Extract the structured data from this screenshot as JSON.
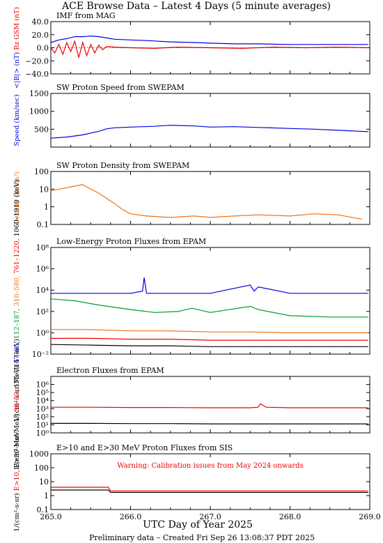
{
  "title": "ACE Browse Data – Latest 4 Days (5 minute averages)",
  "footer": "Preliminary data – Created Fri Sep 26 13:08:37 PDT 2025",
  "colors": {
    "black": "#000000",
    "blue": "#0000dd",
    "red": "#ee0000",
    "orange": "#f07010",
    "green": "#009933"
  },
  "chart_data": [
    {
      "type": "line",
      "title": "IMF from MAG",
      "ylabel_parts": [
        {
          "text": "<|B|> (nT)",
          "color": "#0000dd"
        },
        {
          "text": "Bz GSM (nT)",
          "color": "#ee0000"
        }
      ],
      "ylim": [
        -40,
        40
      ],
      "yscale": "linear",
      "yticks": [
        -40,
        -20,
        0,
        20,
        40
      ],
      "ytick_labels": [
        "−40.0",
        "−20.0",
        "0.0",
        "20.0",
        "40.0"
      ],
      "xlim": [
        265.0,
        269.0
      ],
      "series": [
        {
          "color": "#0000dd",
          "x": [
            265.0,
            265.1,
            265.2,
            265.3,
            265.4,
            265.5,
            265.6,
            265.7,
            265.8,
            266.0,
            266.2,
            266.5,
            266.8,
            267.0,
            267.3,
            267.6,
            268.0,
            268.4,
            268.8,
            268.98
          ],
          "y": [
            8,
            12,
            14,
            17,
            17,
            18,
            17,
            15,
            13,
            12,
            11,
            9,
            8,
            7,
            6,
            6,
            5,
            5,
            5,
            5
          ]
        },
        {
          "color": "#ee0000",
          "x": [
            265.0,
            265.05,
            265.1,
            265.15,
            265.2,
            265.25,
            265.3,
            265.35,
            265.4,
            265.45,
            265.5,
            265.55,
            265.6,
            265.65,
            265.7,
            265.8,
            266.0,
            266.3,
            266.6,
            267.0,
            267.4,
            267.8,
            268.2,
            268.6,
            268.98
          ],
          "y": [
            0,
            -8,
            5,
            -10,
            8,
            -6,
            10,
            -15,
            8,
            -12,
            5,
            -8,
            4,
            -3,
            2,
            1,
            0,
            -1,
            1,
            0,
            -1,
            1,
            0,
            1,
            0
          ]
        }
      ]
    },
    {
      "type": "line",
      "title": "SW Proton Speed from SWEPAM",
      "ylabel_parts": [
        {
          "text": "Speed (km/sec)",
          "color": "#0000dd"
        }
      ],
      "ylim": [
        0,
        1500
      ],
      "yscale": "linear",
      "yticks": [
        500,
        1000,
        1500
      ],
      "ytick_labels": [
        "500",
        "1000",
        "1500"
      ],
      "xlim": [
        265.0,
        269.0
      ],
      "series": [
        {
          "color": "#0000dd",
          "x": [
            265.0,
            265.2,
            265.4,
            265.6,
            265.7,
            265.8,
            266.0,
            266.3,
            266.5,
            266.8,
            267.0,
            267.3,
            267.6,
            268.0,
            268.3,
            268.6,
            268.98
          ],
          "y": [
            250,
            280,
            340,
            440,
            510,
            540,
            560,
            580,
            610,
            590,
            560,
            570,
            550,
            520,
            500,
            470,
            430
          ]
        }
      ]
    },
    {
      "type": "line",
      "title": "SW Proton Density from SWEPAM",
      "ylabel_parts": [
        {
          "text": "Density (#/cm³)",
          "color": "#f07010"
        }
      ],
      "ylim": [
        0.1,
        100
      ],
      "yscale": "log",
      "yticks": [
        0.1,
        1,
        10,
        100
      ],
      "ytick_labels": [
        "0.1",
        "1",
        "10",
        "100"
      ],
      "xlim": [
        265.0,
        269.0
      ],
      "series": [
        {
          "color": "#f07010",
          "x": [
            265.0,
            265.1,
            265.2,
            265.3,
            265.4,
            265.5,
            265.6,
            265.7,
            265.8,
            265.9,
            266.0,
            266.2,
            266.5,
            266.8,
            267.0,
            267.3,
            267.6,
            268.0,
            268.3,
            268.6,
            268.9
          ],
          "y": [
            8,
            10,
            12,
            15,
            18,
            10,
            6,
            3,
            1.5,
            0.7,
            0.4,
            0.3,
            0.25,
            0.3,
            0.25,
            0.3,
            0.35,
            0.3,
            0.4,
            0.35,
            0.2
          ]
        }
      ]
    },
    {
      "type": "line",
      "title": "Low-Energy Proton Fluxes from EPAM",
      "ylabel_parts": [
        {
          "text": "1/(cm²-s-sr-MeV)",
          "color": "#000000"
        },
        {
          "text": "47–65,",
          "color": "#0000dd"
        },
        {
          "text": "112–187,",
          "color": "#009933"
        },
        {
          "text": "310–580,",
          "color": "#f07010"
        },
        {
          "text": "761–1220,",
          "color": "#ee0000"
        },
        {
          "text": "1060–1910 (keV)",
          "color": "#000000"
        }
      ],
      "ylim": [
        0.01,
        100000000
      ],
      "yscale": "log",
      "yticks": [
        0.01,
        1,
        100,
        10000,
        1000000,
        100000000
      ],
      "ytick_labels": [
        "10⁻²",
        "10⁰",
        "10²",
        "10⁴",
        "10⁶",
        "10⁸"
      ],
      "xlim": [
        265.0,
        269.0
      ],
      "series": [
        {
          "color": "#0000dd",
          "x": [
            265.0,
            266.0,
            266.15,
            266.17,
            266.2,
            267.0,
            267.5,
            267.55,
            267.6,
            268.0,
            268.98
          ],
          "y": [
            5000,
            5000,
            8000,
            150000,
            5000,
            5000,
            30000,
            8000,
            20000,
            5000,
            5000
          ]
        },
        {
          "color": "#009933",
          "x": [
            265.0,
            265.3,
            265.6,
            266.0,
            266.3,
            266.6,
            266.77,
            267.0,
            267.5,
            267.6,
            268.0,
            268.5,
            268.98
          ],
          "y": [
            1500,
            1000,
            400,
            150,
            80,
            100,
            200,
            80,
            300,
            150,
            40,
            30,
            30
          ]
        },
        {
          "color": "#f07010",
          "x": [
            265.0,
            265.5,
            266.0,
            266.5,
            267.0,
            267.5,
            268.0,
            268.5,
            268.98
          ],
          "y": [
            2,
            2,
            1.5,
            1.5,
            1.2,
            1.2,
            1,
            1,
            1
          ]
        },
        {
          "color": "#ee0000",
          "x": [
            265.0,
            265.5,
            266.0,
            266.5,
            267.0,
            267.5,
            268.0,
            268.5,
            268.98
          ],
          "y": [
            0.3,
            0.3,
            0.25,
            0.25,
            0.2,
            0.2,
            0.2,
            0.2,
            0.2
          ]
        },
        {
          "color": "#000000",
          "x": [
            265.0,
            265.5,
            266.0,
            266.5,
            267.0,
            267.5,
            268.0,
            268.5,
            268.98
          ],
          "y": [
            0.08,
            0.07,
            0.06,
            0.06,
            0.05,
            0.05,
            0.05,
            0.05,
            0.05
          ]
        }
      ]
    },
    {
      "type": "line",
      "title": "Electron Fluxes from EPAM",
      "ylabel_parts": [
        {
          "text": "1/(cm²-s-sr-MeV)",
          "color": "#000000"
        },
        {
          "text": "38–53,",
          "color": "#ee0000"
        },
        {
          "text": "175–315 (keV)",
          "color": "#000000"
        }
      ],
      "ylim": [
        1,
        10000000
      ],
      "yscale": "log",
      "yticks": [
        1,
        10,
        100,
        1000,
        10000,
        100000,
        1000000
      ],
      "ytick_labels": [
        "10⁰",
        "10¹",
        "10²",
        "10³",
        "10⁴",
        "10⁵",
        "10⁶"
      ],
      "xlim": [
        265.0,
        269.0
      ],
      "series": [
        {
          "color": "#ee0000",
          "x": [
            265.0,
            265.5,
            266.0,
            266.5,
            267.0,
            267.5,
            267.6,
            267.63,
            267.7,
            268.0,
            268.5,
            268.98
          ],
          "y": [
            1500,
            1500,
            1400,
            1400,
            1300,
            1300,
            1500,
            4000,
            1500,
            1300,
            1300,
            1300
          ]
        },
        {
          "color": "#000000",
          "x": [
            265.0,
            265.5,
            266.0,
            266.5,
            267.0,
            267.5,
            268.0,
            268.5,
            268.98
          ],
          "y": [
            15,
            15,
            14,
            14,
            13,
            13,
            13,
            13,
            13
          ]
        }
      ]
    },
    {
      "type": "line",
      "title": "E>10 and E>30 MeV Proton Fluxes from SIS",
      "ylabel_parts": [
        {
          "text": "1/(cm²-s-sr)",
          "color": "#000000"
        },
        {
          "text": "E>10,",
          "color": "#ee0000"
        },
        {
          "text": "E>30 MeV",
          "color": "#000000"
        }
      ],
      "annotation": "Warning: Calibration issues from May 2024 onwards",
      "ylim": [
        0.1,
        1000
      ],
      "yscale": "log",
      "yticks": [
        0.1,
        1,
        10,
        100,
        1000
      ],
      "ytick_labels": [
        "0.1",
        "1",
        "10",
        "100",
        "1000"
      ],
      "xlim": [
        265.0,
        269.0
      ],
      "series": [
        {
          "color": "#ee0000",
          "x": [
            265.0,
            265.3,
            265.6,
            265.72,
            265.75,
            266.0,
            266.5,
            267.0,
            267.5,
            268.0,
            268.5,
            268.98
          ],
          "y": [
            4,
            4,
            4,
            4,
            2.2,
            2.2,
            2.2,
            2.2,
            2.2,
            2.2,
            2.2,
            2.2
          ]
        },
        {
          "color": "#000000",
          "x": [
            265.0,
            265.3,
            265.6,
            265.72,
            265.75,
            266.0,
            266.5,
            267.0,
            267.5,
            268.0,
            268.5,
            268.98
          ],
          "y": [
            2.5,
            2.5,
            2.5,
            2.5,
            1.7,
            1.7,
            1.7,
            1.7,
            1.7,
            1.7,
            1.7,
            1.7
          ]
        }
      ]
    }
  ],
  "xaxis": {
    "label": "UTC Day of Year 2025",
    "ticks": [
      265.0,
      266.0,
      267.0,
      268.0,
      269.0
    ],
    "tick_labels": [
      "265.0",
      "266.0",
      "267.0",
      "268.0",
      "269.0"
    ]
  }
}
